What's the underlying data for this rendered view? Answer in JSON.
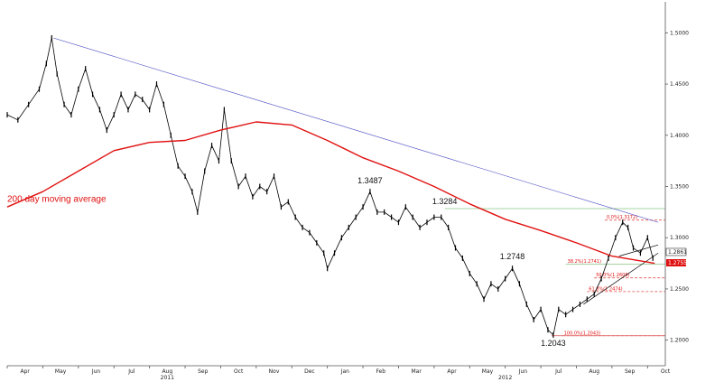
{
  "chart_data": {
    "type": "line",
    "title": "",
    "xlabel": "",
    "ylabel": "",
    "ylim": [
      1.175,
      1.525
    ],
    "grid": false,
    "x_ticks": [
      "Apr",
      "May",
      "Jun",
      "Jul",
      "Aug",
      "Sep",
      "Oct",
      "Nov",
      "Dec",
      "Jan",
      "Feb",
      "Mar",
      "Apr",
      "May",
      "Jun",
      "Jul",
      "Aug",
      "Sep",
      "Oct"
    ],
    "years": [
      "2011",
      "2012"
    ],
    "y_ticks": [
      "1.5000",
      "1.4500",
      "1.4000",
      "1.3500",
      "1.3000",
      "1.2500",
      "1.2000"
    ],
    "y_tick_values": [
      1.5,
      1.45,
      1.4,
      1.35,
      1.3,
      1.25,
      1.2
    ],
    "series": [
      {
        "name": "",
        "kind": "price",
        "color": "#000000",
        "points": [
          [
            0,
            1.42
          ],
          [
            0.3,
            1.415
          ],
          [
            0.6,
            1.43
          ],
          [
            0.9,
            1.445
          ],
          [
            1.1,
            1.47
          ],
          [
            1.25,
            1.495
          ],
          [
            1.4,
            1.46
          ],
          [
            1.6,
            1.43
          ],
          [
            1.8,
            1.42
          ],
          [
            2.0,
            1.445
          ],
          [
            2.2,
            1.465
          ],
          [
            2.4,
            1.44
          ],
          [
            2.6,
            1.425
          ],
          [
            2.8,
            1.405
          ],
          [
            3.0,
            1.42
          ],
          [
            3.2,
            1.44
          ],
          [
            3.4,
            1.425
          ],
          [
            3.6,
            1.44
          ],
          [
            3.8,
            1.435
          ],
          [
            4.0,
            1.425
          ],
          [
            4.2,
            1.45
          ],
          [
            4.4,
            1.43
          ],
          [
            4.6,
            1.4
          ],
          [
            4.8,
            1.37
          ],
          [
            5.0,
            1.36
          ],
          [
            5.2,
            1.345
          ],
          [
            5.35,
            1.325
          ],
          [
            5.55,
            1.365
          ],
          [
            5.75,
            1.39
          ],
          [
            5.95,
            1.375
          ],
          [
            6.1,
            1.425
          ],
          [
            6.3,
            1.375
          ],
          [
            6.5,
            1.35
          ],
          [
            6.7,
            1.36
          ],
          [
            6.9,
            1.34
          ],
          [
            7.1,
            1.35
          ],
          [
            7.3,
            1.345
          ],
          [
            7.5,
            1.36
          ],
          [
            7.7,
            1.33
          ],
          [
            7.9,
            1.335
          ],
          [
            8.1,
            1.32
          ],
          [
            8.3,
            1.31
          ],
          [
            8.5,
            1.305
          ],
          [
            8.7,
            1.295
          ],
          [
            8.9,
            1.285
          ],
          [
            9.0,
            1.27
          ],
          [
            9.2,
            1.285
          ],
          [
            9.4,
            1.3
          ],
          [
            9.6,
            1.31
          ],
          [
            9.8,
            1.32
          ],
          [
            10.0,
            1.33
          ],
          [
            10.2,
            1.345
          ],
          [
            10.4,
            1.325
          ],
          [
            10.6,
            1.325
          ],
          [
            10.8,
            1.32
          ],
          [
            11.0,
            1.315
          ],
          [
            11.2,
            1.33
          ],
          [
            11.4,
            1.32
          ],
          [
            11.6,
            1.31
          ],
          [
            11.8,
            1.315
          ],
          [
            12.0,
            1.32
          ],
          [
            12.2,
            1.32
          ],
          [
            12.4,
            1.31
          ],
          [
            12.6,
            1.29
          ],
          [
            12.8,
            1.28
          ],
          [
            13.0,
            1.265
          ],
          [
            13.2,
            1.255
          ],
          [
            13.4,
            1.24
          ],
          [
            13.6,
            1.255
          ],
          [
            13.8,
            1.25
          ],
          [
            14.0,
            1.26
          ],
          [
            14.2,
            1.27
          ],
          [
            14.4,
            1.255
          ],
          [
            14.6,
            1.235
          ],
          [
            14.8,
            1.22
          ],
          [
            15.0,
            1.23
          ],
          [
            15.2,
            1.21
          ],
          [
            15.35,
            1.205
          ],
          [
            15.5,
            1.23
          ],
          [
            15.7,
            1.225
          ],
          [
            15.9,
            1.23
          ],
          [
            16.1,
            1.235
          ],
          [
            16.3,
            1.24
          ],
          [
            16.5,
            1.245
          ],
          [
            16.7,
            1.26
          ],
          [
            16.9,
            1.28
          ],
          [
            17.1,
            1.3
          ],
          [
            17.3,
            1.315
          ],
          [
            17.45,
            1.31
          ],
          [
            17.6,
            1.29
          ],
          [
            17.8,
            1.285
          ],
          [
            18.0,
            1.3
          ],
          [
            18.15,
            1.28
          ]
        ]
      },
      {
        "name": "200 day moving average",
        "kind": "ma",
        "color": "#e01010",
        "points": [
          [
            0,
            1.33
          ],
          [
            1.0,
            1.345
          ],
          [
            2.0,
            1.365
          ],
          [
            3.0,
            1.385
          ],
          [
            4.0,
            1.393
          ],
          [
            5.0,
            1.395
          ],
          [
            6.0,
            1.405
          ],
          [
            7.0,
            1.413
          ],
          [
            8.0,
            1.41
          ],
          [
            9.0,
            1.395
          ],
          [
            10.0,
            1.378
          ],
          [
            11.0,
            1.365
          ],
          [
            12.0,
            1.35
          ],
          [
            13.0,
            1.333
          ],
          [
            14.0,
            1.318
          ],
          [
            15.0,
            1.307
          ],
          [
            16.0,
            1.295
          ],
          [
            17.0,
            1.282
          ],
          [
            18.2,
            1.275
          ]
        ]
      }
    ],
    "trendlines": [
      {
        "color": "#5b5fc7",
        "points": [
          [
            1.3,
            1.495
          ],
          [
            18.3,
            1.315
          ]
        ]
      },
      {
        "color": "#000000",
        "points": [
          [
            16.2,
            1.235
          ],
          [
            18.3,
            1.285
          ]
        ]
      },
      {
        "color": "#000000",
        "points": [
          [
            17.2,
            1.282
          ],
          [
            18.3,
            1.293
          ]
        ]
      }
    ],
    "levels": [
      {
        "label": "1.3284",
        "value": 1.3284,
        "color": "#88c488",
        "style": "solid",
        "from_x": 12.3
      },
      {
        "label": "1.2043",
        "value": 1.2043,
        "color": "#e05050",
        "style": "solid",
        "from_x": 15.3
      },
      {
        "label": "0.0%(1.3172)",
        "value": 1.3172,
        "color": "#e05050",
        "style": "dashed",
        "from_x": 16.8
      },
      {
        "label": "38.2%(1.2741)",
        "value": 1.2741,
        "color": "#88c488",
        "style": "solid",
        "from_x": 15.7
      },
      {
        "label": "50.0%(1.2608)",
        "value": 1.2608,
        "color": "#e05050",
        "style": "dashed",
        "from_x": 16.5
      },
      {
        "label": "61.8%(1.2474)",
        "value": 1.2474,
        "color": "#e05050",
        "style": "dashed",
        "from_x": 16.3
      },
      {
        "label": "100.0%(1.2043)",
        "value": 1.2043,
        "color": "#e05050",
        "style": "dashed",
        "from_x": 15.6
      }
    ],
    "annotations": [
      {
        "text": "1.3487",
        "x": 10.2,
        "y": 1.3487
      },
      {
        "text": "1.3284",
        "x": 12.3,
        "y": 1.3284
      },
      {
        "text": "1.2748",
        "x": 14.2,
        "y": 1.2748
      },
      {
        "text": "1.2043",
        "x": 15.35,
        "y": 1.2043
      }
    ],
    "last_price": {
      "text": "1.2861",
      "value": 1.2861
    },
    "ma_last": {
      "text": "1.2755",
      "value": 1.2755
    },
    "ma_label": "200 day moving average"
  }
}
